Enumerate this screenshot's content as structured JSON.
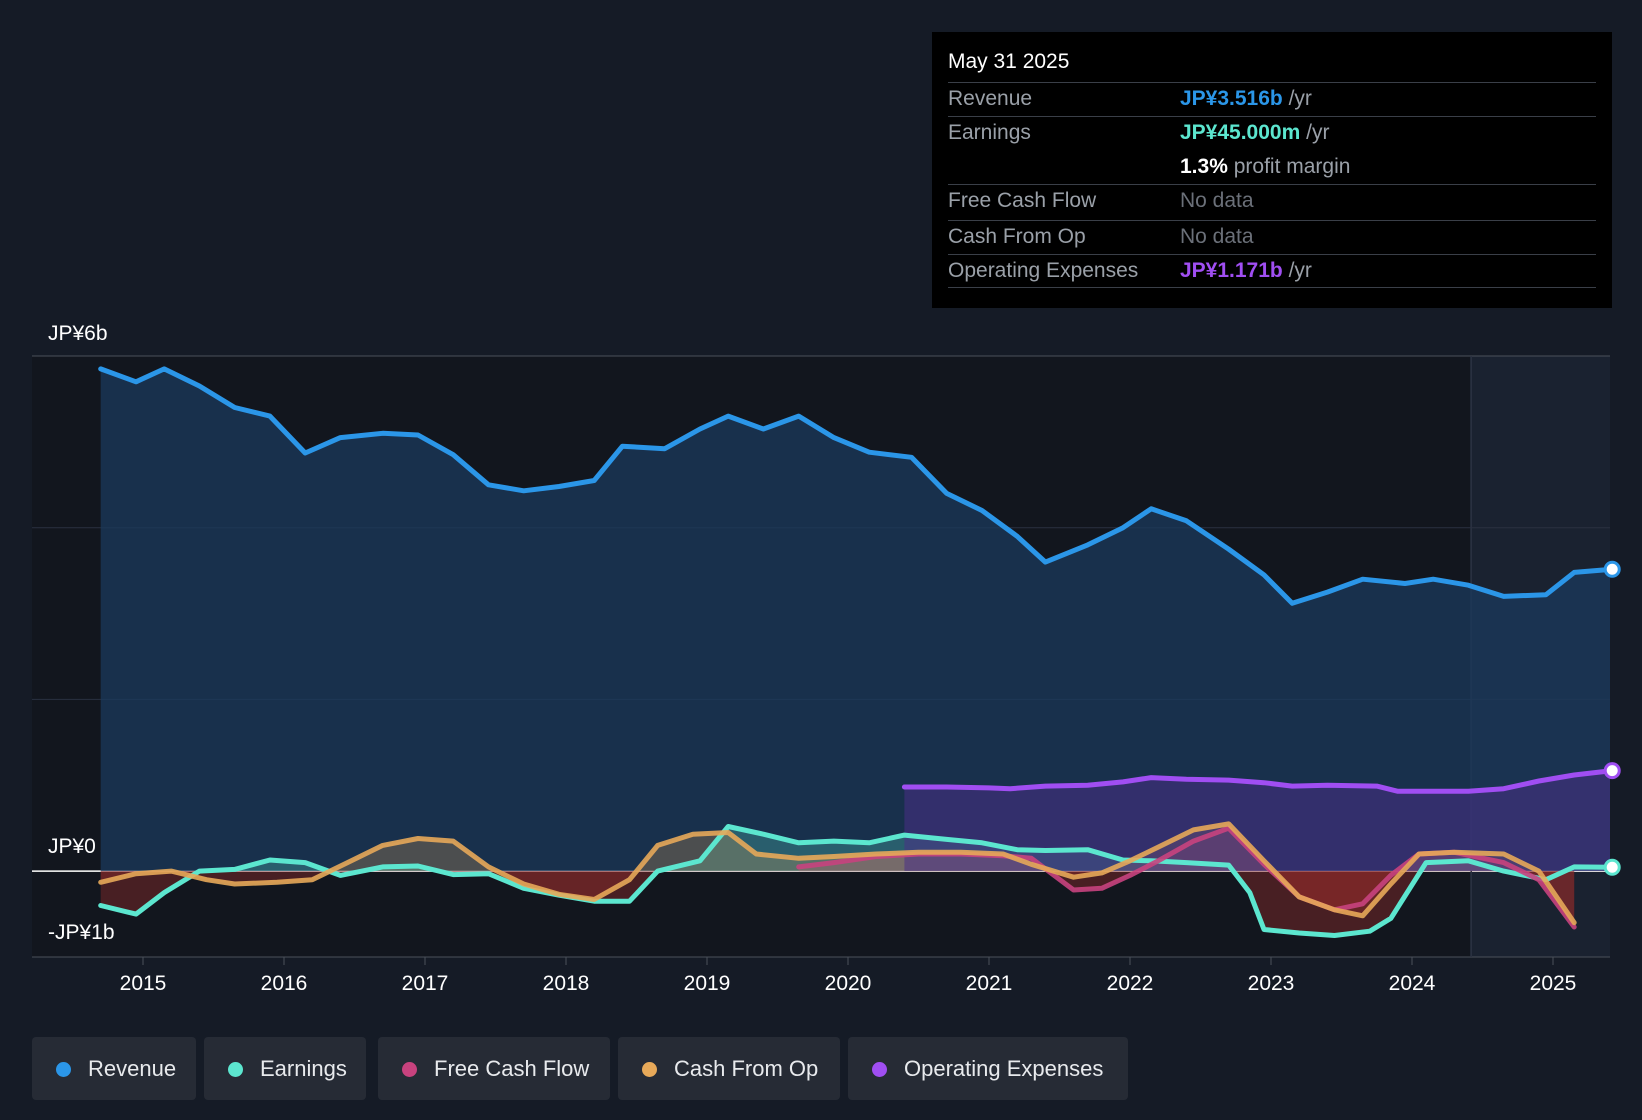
{
  "tooltip": {
    "date": "May 31 2025",
    "revenue": {
      "label": "Revenue",
      "value": "JP¥3.516b",
      "unit": "/yr"
    },
    "earnings": {
      "label": "Earnings",
      "value": "JP¥45.000m",
      "unit": "/yr"
    },
    "profit_margin": {
      "value": "1.3%",
      "text": "profit margin"
    },
    "free_cash_flow": {
      "label": "Free Cash Flow",
      "value": "No data"
    },
    "cash_from_op": {
      "label": "Cash From Op",
      "value": "No data"
    },
    "operating_expenses": {
      "label": "Operating Expenses",
      "value": "JP¥1.171b",
      "unit": "/yr"
    }
  },
  "legend": [
    {
      "label": "Revenue",
      "color": "#2b96e8"
    },
    {
      "label": "Earnings",
      "color": "#5ce6cf"
    },
    {
      "label": "Free Cash Flow",
      "color": "#c8427e"
    },
    {
      "label": "Cash From Op",
      "color": "#e7a959"
    },
    {
      "label": "Operating Expenses",
      "color": "#a04ef2"
    }
  ],
  "chart_data": {
    "type": "line",
    "title": "",
    "xlabel": "",
    "ylabel": "JP¥",
    "ylim": [
      -1,
      6
    ],
    "y_ticks": [
      {
        "value": 6,
        "label": "JP¥6b"
      },
      {
        "value": 0,
        "label": "JP¥0"
      },
      {
        "value": -1,
        "label": "-JP¥1b"
      }
    ],
    "x_ticks": [
      {
        "value": 2015,
        "label": "2015"
      },
      {
        "value": 2016,
        "label": "2016"
      },
      {
        "value": 2017,
        "label": "2017"
      },
      {
        "value": 2018,
        "label": "2018"
      },
      {
        "value": 2019,
        "label": "2019"
      },
      {
        "value": 2020,
        "label": "2020"
      },
      {
        "value": 2021,
        "label": "2021"
      },
      {
        "value": 2022,
        "label": "2022"
      },
      {
        "value": 2023,
        "label": "2023"
      },
      {
        "value": 2024,
        "label": "2024"
      },
      {
        "value": 2025,
        "label": "2025"
      }
    ],
    "xlim": [
      2014.25,
      2025.42
    ],
    "forecast_start": 2024.42,
    "series": [
      {
        "name": "Revenue",
        "color": "#2b96e8",
        "fill": true,
        "end_marker": true,
        "x": [
          2014.7,
          2014.95,
          2015.15,
          2015.4,
          2015.65,
          2015.9,
          2016.15,
          2016.4,
          2016.7,
          2016.95,
          2017.2,
          2017.45,
          2017.7,
          2017.95,
          2018.2,
          2018.4,
          2018.7,
          2018.95,
          2019.15,
          2019.4,
          2019.65,
          2019.9,
          2020.15,
          2020.45,
          2020.7,
          2020.95,
          2021.2,
          2021.4,
          2021.7,
          2021.95,
          2022.15,
          2022.4,
          2022.7,
          2022.95,
          2023.15,
          2023.4,
          2023.65,
          2023.95,
          2024.15,
          2024.4,
          2024.65,
          2024.95,
          2025.15,
          2025.42
        ],
        "values": [
          5.85,
          5.7,
          5.85,
          5.65,
          5.4,
          5.3,
          4.87,
          5.05,
          5.1,
          5.08,
          4.85,
          4.5,
          4.43,
          4.48,
          4.55,
          4.95,
          4.92,
          5.15,
          5.3,
          5.15,
          5.3,
          5.05,
          4.88,
          4.82,
          4.4,
          4.2,
          3.9,
          3.6,
          3.8,
          4.0,
          4.22,
          4.08,
          3.75,
          3.45,
          3.12,
          3.25,
          3.4,
          3.35,
          3.4,
          3.33,
          3.2,
          3.22,
          3.48,
          3.516
        ]
      },
      {
        "name": "Earnings",
        "color": "#5ce6cf",
        "fill": true,
        "end_marker": true,
        "x": [
          2014.7,
          2014.95,
          2015.15,
          2015.4,
          2015.65,
          2015.9,
          2016.15,
          2016.4,
          2016.7,
          2016.95,
          2017.2,
          2017.45,
          2017.7,
          2017.95,
          2018.2,
          2018.45,
          2018.65,
          2018.95,
          2019.15,
          2019.4,
          2019.65,
          2019.9,
          2020.15,
          2020.4,
          2020.7,
          2020.95,
          2021.2,
          2021.4,
          2021.7,
          2021.95,
          2022.15,
          2022.4,
          2022.7,
          2022.85,
          2022.95,
          2023.2,
          2023.45,
          2023.7,
          2023.85,
          2024.1,
          2024.4,
          2024.65,
          2024.95,
          2025.15,
          2025.42
        ],
        "values": [
          -0.4,
          -0.5,
          -0.25,
          0.0,
          0.02,
          0.13,
          0.1,
          -0.05,
          0.05,
          0.06,
          -0.04,
          -0.03,
          -0.2,
          -0.28,
          -0.35,
          -0.35,
          0.0,
          0.12,
          0.52,
          0.43,
          0.33,
          0.35,
          0.33,
          0.42,
          0.37,
          0.33,
          0.25,
          0.24,
          0.25,
          0.13,
          0.12,
          0.1,
          0.07,
          -0.25,
          -0.68,
          -0.72,
          -0.75,
          -0.7,
          -0.55,
          0.1,
          0.12,
          0.0,
          -0.1,
          0.05,
          0.045
        ]
      },
      {
        "name": "Free Cash Flow",
        "color": "#c8427e",
        "fill": true,
        "end_marker": false,
        "x": [
          2019.65,
          2019.9,
          2020.2,
          2020.5,
          2020.8,
          2021.1,
          2021.3,
          2021.6,
          2021.8,
          2022.0,
          2022.2,
          2022.45,
          2022.7,
          2022.95,
          2023.2,
          2023.45,
          2023.65,
          2023.85,
          2024.05,
          2024.3,
          2024.65,
          2024.9,
          2025.15
        ],
        "values": [
          0.05,
          0.1,
          0.17,
          0.2,
          0.2,
          0.18,
          0.15,
          -0.22,
          -0.2,
          -0.05,
          0.12,
          0.35,
          0.5,
          0.08,
          -0.3,
          -0.45,
          -0.38,
          -0.05,
          0.2,
          0.22,
          0.1,
          -0.1,
          -0.65
        ]
      },
      {
        "name": "Cash From Op",
        "color": "#e7a959",
        "fill": true,
        "end_marker": false,
        "x": [
          2014.7,
          2014.95,
          2015.2,
          2015.45,
          2015.65,
          2015.95,
          2016.2,
          2016.45,
          2016.7,
          2016.95,
          2017.2,
          2017.45,
          2017.7,
          2017.95,
          2018.2,
          2018.45,
          2018.65,
          2018.9,
          2019.15,
          2019.35,
          2019.65,
          2019.9,
          2020.2,
          2020.5,
          2020.8,
          2021.1,
          2021.3,
          2021.6,
          2021.8,
          2022.0,
          2022.2,
          2022.45,
          2022.7,
          2022.95,
          2023.2,
          2023.45,
          2023.65,
          2023.85,
          2024.05,
          2024.3,
          2024.65,
          2024.9,
          2025.15
        ],
        "values": [
          -0.13,
          -0.03,
          0.0,
          -0.1,
          -0.15,
          -0.13,
          -0.1,
          0.1,
          0.3,
          0.38,
          0.35,
          0.05,
          -0.15,
          -0.27,
          -0.33,
          -0.1,
          0.3,
          0.43,
          0.45,
          0.2,
          0.15,
          0.17,
          0.2,
          0.22,
          0.22,
          0.2,
          0.08,
          -0.07,
          -0.02,
          0.12,
          0.28,
          0.48,
          0.55,
          0.12,
          -0.3,
          -0.45,
          -0.52,
          -0.15,
          0.2,
          0.22,
          0.2,
          0.0,
          -0.6
        ]
      },
      {
        "name": "Operating Expenses",
        "color": "#a04ef2",
        "fill": true,
        "end_marker": true,
        "x": [
          2020.4,
          2020.7,
          2021.0,
          2021.15,
          2021.4,
          2021.7,
          2021.95,
          2022.15,
          2022.4,
          2022.7,
          2022.95,
          2023.15,
          2023.4,
          2023.75,
          2023.9,
          2024.1,
          2024.4,
          2024.65,
          2024.9,
          2025.15,
          2025.42
        ],
        "values": [
          0.98,
          0.98,
          0.97,
          0.96,
          0.99,
          1.0,
          1.04,
          1.09,
          1.07,
          1.06,
          1.03,
          0.99,
          1.0,
          0.99,
          0.93,
          0.93,
          0.93,
          0.96,
          1.05,
          1.12,
          1.171
        ]
      }
    ]
  }
}
